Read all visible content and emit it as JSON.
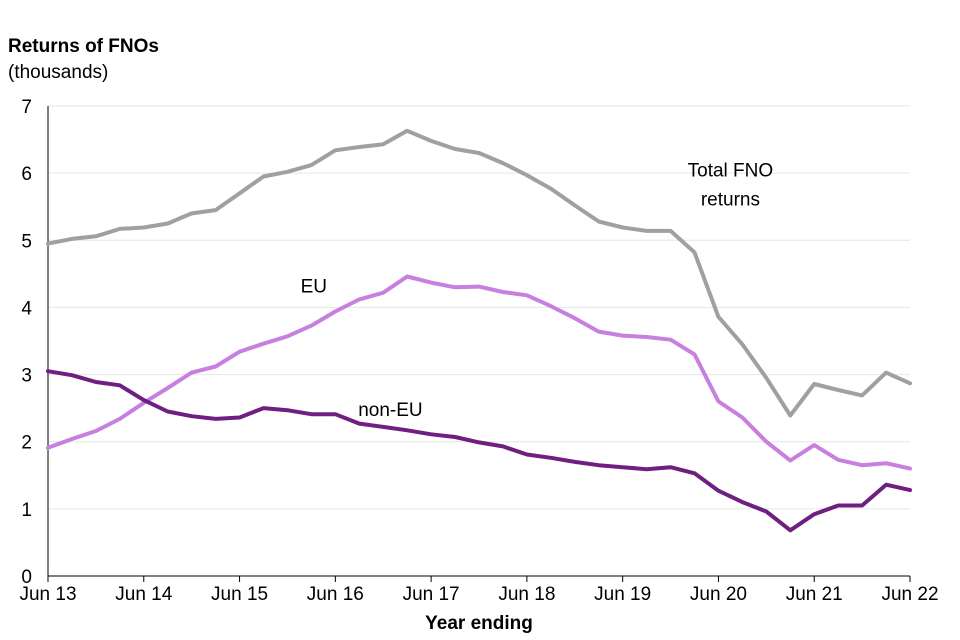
{
  "chart_data": {
    "type": "line",
    "ylabel": "Returns of FNOs",
    "ylabel_unit": "(thousands)",
    "xlabel": "Year ending",
    "ylim": [
      0,
      7
    ],
    "yticks": [
      0,
      1,
      2,
      3,
      4,
      5,
      6,
      7
    ],
    "xtick_labels": [
      "Jun 13",
      "Jun 14",
      "Jun 15",
      "Jun 16",
      "Jun 17",
      "Jun 18",
      "Jun 19",
      "Jun 20",
      "Jun 21",
      "Jun 22"
    ],
    "grid": true,
    "x": [
      "Jun 13",
      "Sep 13",
      "Dec 13",
      "Mar 14",
      "Jun 14",
      "Sep 14",
      "Dec 14",
      "Mar 15",
      "Jun 15",
      "Sep 15",
      "Dec 15",
      "Mar 16",
      "Jun 16",
      "Sep 16",
      "Dec 16",
      "Mar 17",
      "Jun 17",
      "Sep 17",
      "Dec 17",
      "Mar 18",
      "Jun 18",
      "Sep 18",
      "Dec 18",
      "Mar 19",
      "Jun 19",
      "Sep 19",
      "Dec 19",
      "Mar 20",
      "Jun 20",
      "Sep 20",
      "Dec 20",
      "Mar 21",
      "Jun 21",
      "Sep 21",
      "Dec 21",
      "Mar 22",
      "Jun 22"
    ],
    "series": [
      {
        "name": "Total FNO returns",
        "label_lines": [
          "Total FNO",
          "returns"
        ],
        "color": "#a0a0a0",
        "values": [
          4.95,
          5.02,
          5.06,
          5.17,
          5.19,
          5.25,
          5.4,
          5.45,
          5.7,
          5.95,
          6.02,
          6.12,
          6.34,
          6.39,
          6.43,
          6.63,
          6.48,
          6.36,
          6.3,
          6.15,
          5.97,
          5.77,
          5.52,
          5.28,
          5.19,
          5.14,
          5.14,
          4.82,
          3.86,
          3.45,
          2.95,
          2.39,
          2.86,
          2.77,
          2.69,
          3.03,
          2.87
        ]
      },
      {
        "name": "EU",
        "label_lines": [
          "EU"
        ],
        "color": "#c77fe0",
        "values": [
          1.91,
          2.04,
          2.16,
          2.34,
          2.58,
          2.8,
          3.03,
          3.12,
          3.34,
          3.46,
          3.57,
          3.73,
          3.94,
          4.12,
          4.22,
          4.46,
          4.37,
          4.3,
          4.31,
          4.23,
          4.18,
          4.02,
          3.84,
          3.64,
          3.58,
          3.56,
          3.52,
          3.3,
          2.6,
          2.36,
          2.0,
          1.72,
          1.95,
          1.73,
          1.65,
          1.68,
          1.6
        ]
      },
      {
        "name": "non-EU",
        "label_lines": [
          "non-EU"
        ],
        "color": "#6e1f80",
        "values": [
          3.05,
          2.99,
          2.89,
          2.84,
          2.62,
          2.45,
          2.38,
          2.34,
          2.36,
          2.5,
          2.47,
          2.41,
          2.41,
          2.27,
          2.22,
          2.17,
          2.11,
          2.07,
          1.99,
          1.93,
          1.81,
          1.76,
          1.7,
          1.65,
          1.62,
          1.59,
          1.62,
          1.53,
          1.27,
          1.1,
          0.96,
          0.68,
          0.92,
          1.05,
          1.05,
          1.36,
          1.28
        ]
      }
    ]
  }
}
